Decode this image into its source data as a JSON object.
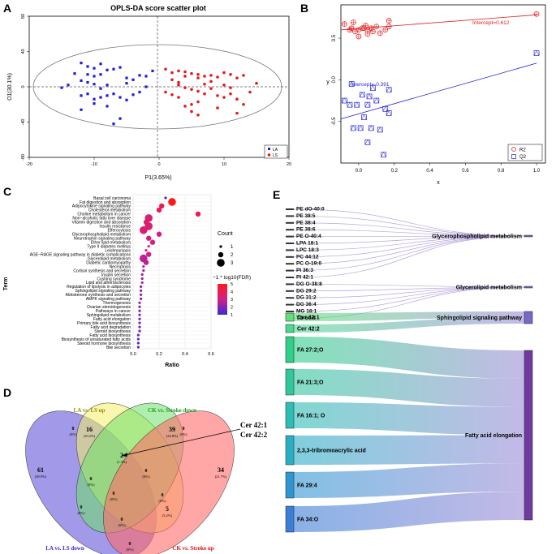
{
  "panels": {
    "a": {
      "letter": "A"
    },
    "b": {
      "letter": "B"
    },
    "c": {
      "letter": "C"
    },
    "d": {
      "letter": "D"
    },
    "e": {
      "letter": "E"
    }
  },
  "chart_data": [
    {
      "type": "scatter",
      "title": "OPLS-DA score scatter plot",
      "xlabel": "P1(3.65%)",
      "ylabel": "O1(30.1%)",
      "xlim": [
        -20,
        20
      ],
      "ylim": [
        -80,
        80
      ],
      "xticks": [
        -20,
        -10,
        0,
        10,
        20
      ],
      "yticks": [
        -80,
        -40,
        0,
        40,
        80
      ],
      "legend": [
        "LA",
        "LS"
      ],
      "colors": {
        "LA": "#1f1fd6",
        "LS": "#e31a1c"
      },
      "series": [
        {
          "name": "LA",
          "points": [
            [
              -12,
              27
            ],
            [
              -11,
              23
            ],
            [
              -10,
              21
            ],
            [
              -9,
              26
            ],
            [
              -8,
              19
            ],
            [
              -9,
              14
            ],
            [
              -10,
              12
            ],
            [
              -7,
              20
            ],
            [
              -6,
              22
            ],
            [
              -5,
              10
            ],
            [
              -4,
              8
            ],
            [
              -3,
              13
            ],
            [
              -2,
              12
            ],
            [
              -1,
              18
            ],
            [
              -11,
              5
            ],
            [
              -12,
              7
            ],
            [
              -10,
              3
            ],
            [
              -8,
              2
            ],
            [
              -9,
              -2
            ],
            [
              -11,
              -8
            ],
            [
              -12,
              -10
            ],
            [
              -9,
              -12
            ],
            [
              -8,
              -10
            ],
            [
              -7,
              -8
            ],
            [
              -10,
              -14
            ],
            [
              -6,
              -12
            ],
            [
              -5,
              -15
            ],
            [
              -4,
              -9
            ],
            [
              -3,
              -6
            ],
            [
              -8,
              -22
            ],
            [
              -12,
              -26
            ],
            [
              -10,
              -19
            ],
            [
              -6,
              -36
            ],
            [
              -7,
              -42
            ],
            [
              -13,
              15
            ],
            [
              -14,
              2
            ],
            [
              -15,
              -1
            ],
            [
              -11,
              14
            ],
            [
              -5,
              4
            ],
            [
              -2,
              0
            ]
          ]
        },
        {
          "name": "LS",
          "points": [
            [
              1,
              20
            ],
            [
              2,
              16
            ],
            [
              3,
              18
            ],
            [
              4,
              17
            ],
            [
              5,
              15
            ],
            [
              6,
              14
            ],
            [
              7,
              12
            ],
            [
              8,
              13
            ],
            [
              9,
              11
            ],
            [
              10,
              16
            ],
            [
              11,
              14
            ],
            [
              12,
              10
            ],
            [
              13,
              13
            ],
            [
              15,
              4
            ],
            [
              2,
              8
            ],
            [
              3,
              2
            ],
            [
              4,
              -1
            ],
            [
              5,
              -3
            ],
            [
              6,
              -5
            ],
            [
              7,
              -8
            ],
            [
              8,
              -2
            ],
            [
              9,
              -10
            ],
            [
              10,
              -12
            ],
            [
              11,
              -8
            ],
            [
              12,
              -14
            ],
            [
              6,
              -17
            ],
            [
              5,
              -20
            ],
            [
              4,
              -22
            ],
            [
              9,
              -24
            ],
            [
              13,
              -20
            ],
            [
              12,
              -30
            ],
            [
              5,
              -28
            ],
            [
              6,
              -32
            ],
            [
              3,
              5
            ],
            [
              7,
              3
            ],
            [
              1,
              -6
            ],
            [
              2,
              -9
            ],
            [
              8,
              6
            ],
            [
              10,
              2
            ],
            [
              11,
              -1
            ],
            [
              14,
              -6
            ],
            [
              3,
              -12
            ],
            [
              4,
              12
            ],
            [
              6,
              10
            ]
          ]
        }
      ]
    },
    {
      "type": "scatter",
      "title": "",
      "xlabel": "x",
      "ylabel": "y",
      "xlim": [
        -0.1,
        1.05
      ],
      "ylim": [
        -1.0,
        0.9
      ],
      "xticks": [
        "0.0",
        "0.2",
        "0.4",
        "0.6",
        "0.8",
        "1.0"
      ],
      "yticks": [
        "-0.5",
        "0.0",
        "0.5"
      ],
      "legend": [
        "R2",
        "Q2"
      ],
      "annotations": [
        "Intercept=0.612",
        "Intercept=-0.391"
      ],
      "r2_line": {
        "x": [
          -0.1,
          1.0
        ],
        "y": [
          0.6,
          0.78
        ]
      },
      "q2_line": {
        "x": [
          -0.1,
          1.0
        ],
        "y": [
          -0.47,
          0.2
        ]
      },
      "series": [
        {
          "name": "R2",
          "points": [
            [
              -0.08,
              0.67
            ],
            [
              -0.05,
              0.6
            ],
            [
              -0.04,
              0.62
            ],
            [
              -0.02,
              0.58
            ],
            [
              0.0,
              0.6
            ],
            [
              0.02,
              0.62
            ],
            [
              0.04,
              0.65
            ],
            [
              0.05,
              0.6
            ],
            [
              0.07,
              0.62
            ],
            [
              0.08,
              0.58
            ],
            [
              0.1,
              0.64
            ],
            [
              0.12,
              0.56
            ],
            [
              0.15,
              0.6
            ],
            [
              0.17,
              0.64
            ],
            [
              0.0,
              0.52
            ],
            [
              0.05,
              0.55
            ],
            [
              -0.03,
              0.69
            ],
            [
              0.17,
              0.71
            ],
            [
              0.03,
              0.62
            ],
            [
              1.0,
              0.79
            ]
          ]
        },
        {
          "name": "Q2",
          "points": [
            [
              -0.08,
              -0.25
            ],
            [
              -0.05,
              -0.3
            ],
            [
              -0.03,
              -0.58
            ],
            [
              -0.01,
              -0.3
            ],
            [
              0.01,
              -0.58
            ],
            [
              0.03,
              -0.45
            ],
            [
              0.05,
              -0.3
            ],
            [
              0.07,
              -0.58
            ],
            [
              0.08,
              -0.1
            ],
            [
              0.1,
              -0.25
            ],
            [
              0.12,
              -0.6
            ],
            [
              0.15,
              -0.35
            ],
            [
              0.17,
              -0.12
            ],
            [
              0.17,
              -0.4
            ],
            [
              0.05,
              -0.75
            ],
            [
              0.14,
              -0.9
            ],
            [
              0.02,
              -0.18
            ],
            [
              -0.04,
              -0.05
            ],
            [
              0.06,
              -0.2
            ],
            [
              1.0,
              0.32
            ]
          ]
        }
      ]
    },
    {
      "type": "scatter",
      "title": "",
      "xlabel": "Ratio",
      "ylabel": "Term",
      "xlim": [
        0,
        0.6
      ],
      "xticks": [
        "0.0",
        "0.2",
        "0.4",
        "0.6"
      ],
      "size_legend_title": "Count",
      "size_legend": [
        "1",
        "2",
        "3"
      ],
      "color_legend_title": "−1 * log10(FDR)",
      "color_ticks": [
        "5",
        "4",
        "3",
        "2",
        "1"
      ],
      "terms": [
        "Basal cell carcinoma",
        "Fat digestion and absorption",
        "Adipocytokine signaling pathway",
        "Cholesterol metabolism",
        "Choline metabolism in cancer",
        "Non−alcoholic fatty liver disease",
        "Vitamin digestion and absorption",
        "Insulin resistance",
        "Efferocytosis",
        "Glycerophospholipid metabolism",
        "Neurotrophin signaling pathway",
        "Ether lipid metabolism",
        "Type II diabetes mellitus",
        "Leishmaniasis",
        "AGE−RAGE signaling pathway in diabetic complications",
        "Glycerolipid metabolism",
        "Diabetic cardiomyopathy",
        "Necroptosis",
        "Cortisol synthesis and secretion",
        "Insulin secretion",
        "Cushing syndrome",
        "Lipid and atherosclerosis",
        "Regulation of lipolysis in adipocytes",
        "Sphingolipid signaling pathway",
        "Aldosterone synthesis and secretion",
        "AMPK signaling pathway",
        "Thermogenesis",
        "Ovarian steroidogenesis",
        "Pathways in cancer",
        "Sphingolipid metabolism",
        "Fatty acid elongation",
        "Primary bile acid biosynthesis",
        "Fatty acid degradation",
        "Steroid biosynthesis",
        "Fatty acid biosynthesis",
        "Biosynthesis of unsaturated fatty acids",
        "Steroid hormone biosynthesis",
        "Bile secretion"
      ],
      "ratio": [
        0.25,
        0.3,
        0.22,
        0.2,
        0.5,
        0.12,
        0.1,
        0.12,
        0.08,
        0.2,
        0.12,
        0.15,
        0.12,
        0.1,
        0.12,
        0.08,
        0.1,
        0.08,
        0.08,
        0.07,
        0.07,
        0.07,
        0.06,
        0.06,
        0.06,
        0.06,
        0.05,
        0.05,
        0.05,
        0.05,
        0.05,
        0.05,
        0.05,
        0.05,
        0.04,
        0.04,
        0.04,
        0.04
      ],
      "count": [
        1,
        3,
        2,
        2,
        2,
        3,
        2,
        3,
        3,
        2,
        2,
        2,
        1,
        1,
        2,
        3,
        2,
        1,
        1,
        1,
        1,
        1,
        1,
        1,
        1,
        1,
        1,
        1,
        1,
        1,
        1,
        1,
        1,
        1,
        1,
        1,
        1,
        1
      ],
      "fdr_score": [
        1,
        5,
        4,
        4,
        4,
        3.5,
        3.5,
        3.5,
        3.5,
        3.2,
        3.2,
        3.2,
        3,
        3,
        3,
        2.8,
        2.8,
        2.6,
        2.4,
        2.4,
        2.3,
        2.3,
        2.2,
        2.2,
        2.1,
        2.1,
        2,
        2,
        2,
        1.9,
        1.9,
        1.8,
        1.8,
        1.7,
        1.7,
        1.6,
        1.5,
        1.5
      ]
    },
    {
      "type": "venn",
      "sets": [
        "LA vs. LS up",
        "CK vs. Stroke down",
        "LA vs. LS down",
        "CK vs. Stroke up"
      ],
      "regions": [
        {
          "n": "16",
          "p": "(10.2%)"
        },
        {
          "n": "39",
          "p": "(24.8%)"
        },
        {
          "n": "61",
          "p": "(38.9%)"
        },
        {
          "n": "34",
          "p": "(21.7%)"
        },
        {
          "n": "2",
          "p": "(1.3%)"
        },
        {
          "n": "5",
          "p": "(3.2%)"
        },
        {
          "n": "0",
          "p": "(0%)"
        },
        {
          "n": "0",
          "p": "(0%)"
        },
        {
          "n": "0",
          "p": "(0%)"
        },
        {
          "n": "0",
          "p": "(0%)"
        },
        {
          "n": "0",
          "p": "(0%)"
        },
        {
          "n": "0",
          "p": "(0%)"
        },
        {
          "n": "0",
          "p": "(0%)"
        },
        {
          "n": "0",
          "p": "(0%)"
        },
        {
          "n": "0",
          "p": "(0%)"
        }
      ],
      "annotations": [
        "Cer 42:1",
        "Cer 42:2"
      ]
    },
    {
      "type": "sankey",
      "left_nodes": [
        "PE dO-40:0",
        "PE 38:5",
        "PE 38:4",
        "PE 38:6",
        "PE O-40:4",
        "LPA 18:1",
        "LPC 18:3",
        "PC 44:12",
        "PC O-19:0",
        "PI 36:3",
        "PI 42:1",
        "DG O-38:8",
        "DG 29:2",
        "DG 31:2",
        "DG 36:4",
        "MG 18:1",
        "TG 60:4",
        "Cer 42:1",
        "Cer 42:2",
        "FA 27:2;O",
        "FA 21:3;O",
        "FA 16:1; O",
        "2,3,3-tribromoacrylic acid",
        "FA 29:4",
        "FA 34:O"
      ],
      "right_nodes": [
        "Glycerophospholipid metabolism",
        "Glycerolipid metabolism",
        "Sphingolipid signaling pathway",
        "Fatty acid elongation"
      ]
    }
  ]
}
